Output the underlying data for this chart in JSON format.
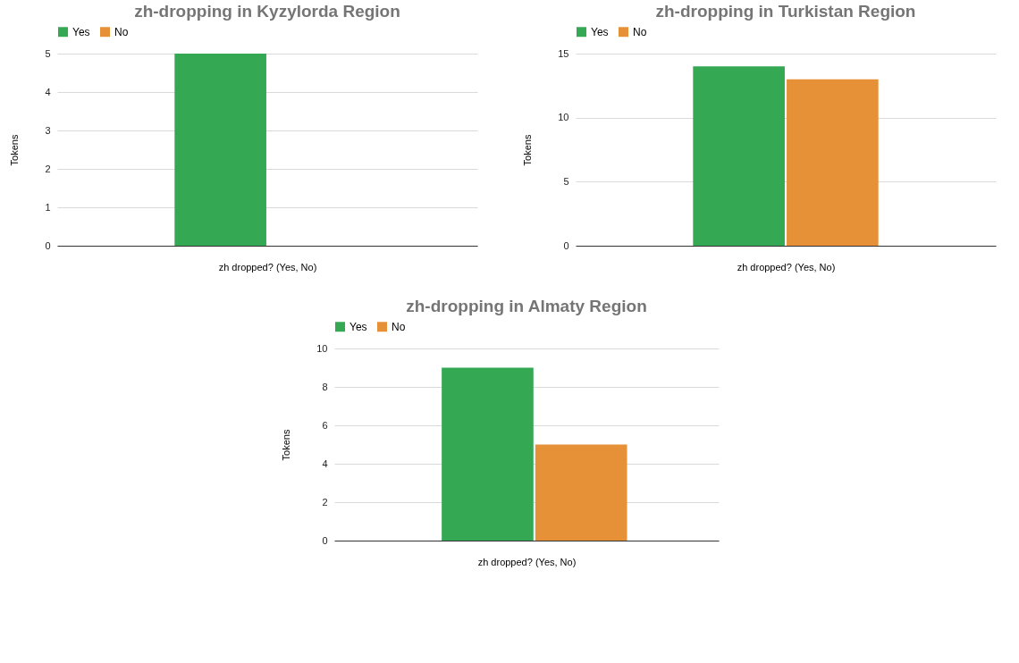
{
  "chart_data": [
    {
      "type": "bar",
      "title": "zh-dropping in Kyzylorda Region",
      "xlabel": "zh dropped? (Yes, No)",
      "ylabel": "Tokens",
      "categories": [
        null
      ],
      "series": [
        {
          "name": "Yes",
          "color": "#34a853",
          "values": [
            5
          ]
        },
        {
          "name": "No",
          "color": "#e69138",
          "values": [
            0
          ]
        }
      ],
      "ylim": [
        0,
        5
      ],
      "yticks": [
        0,
        1,
        2,
        3,
        4,
        5
      ],
      "grid": "y",
      "legend": "top"
    },
    {
      "type": "bar",
      "title": "zh-dropping in Turkistan Region",
      "xlabel": "zh dropped? (Yes, No)",
      "ylabel": "Tokens",
      "categories": [
        null
      ],
      "series": [
        {
          "name": "Yes",
          "color": "#34a853",
          "values": [
            14
          ]
        },
        {
          "name": "No",
          "color": "#e69138",
          "values": [
            13
          ]
        }
      ],
      "ylim": [
        0,
        15
      ],
      "yticks": [
        0,
        5,
        10,
        15
      ],
      "grid": "y",
      "legend": "top"
    },
    {
      "type": "bar",
      "title": "zh-dropping in Almaty Region",
      "xlabel": "zh dropped? (Yes, No)",
      "ylabel": "Tokens",
      "categories": [
        null
      ],
      "series": [
        {
          "name": "Yes",
          "color": "#34a853",
          "values": [
            9
          ]
        },
        {
          "name": "No",
          "color": "#e69138",
          "values": [
            5
          ]
        }
      ],
      "ylim": [
        0,
        10
      ],
      "yticks": [
        0,
        2,
        4,
        6,
        8,
        10
      ],
      "grid": "y",
      "legend": "top"
    }
  ]
}
